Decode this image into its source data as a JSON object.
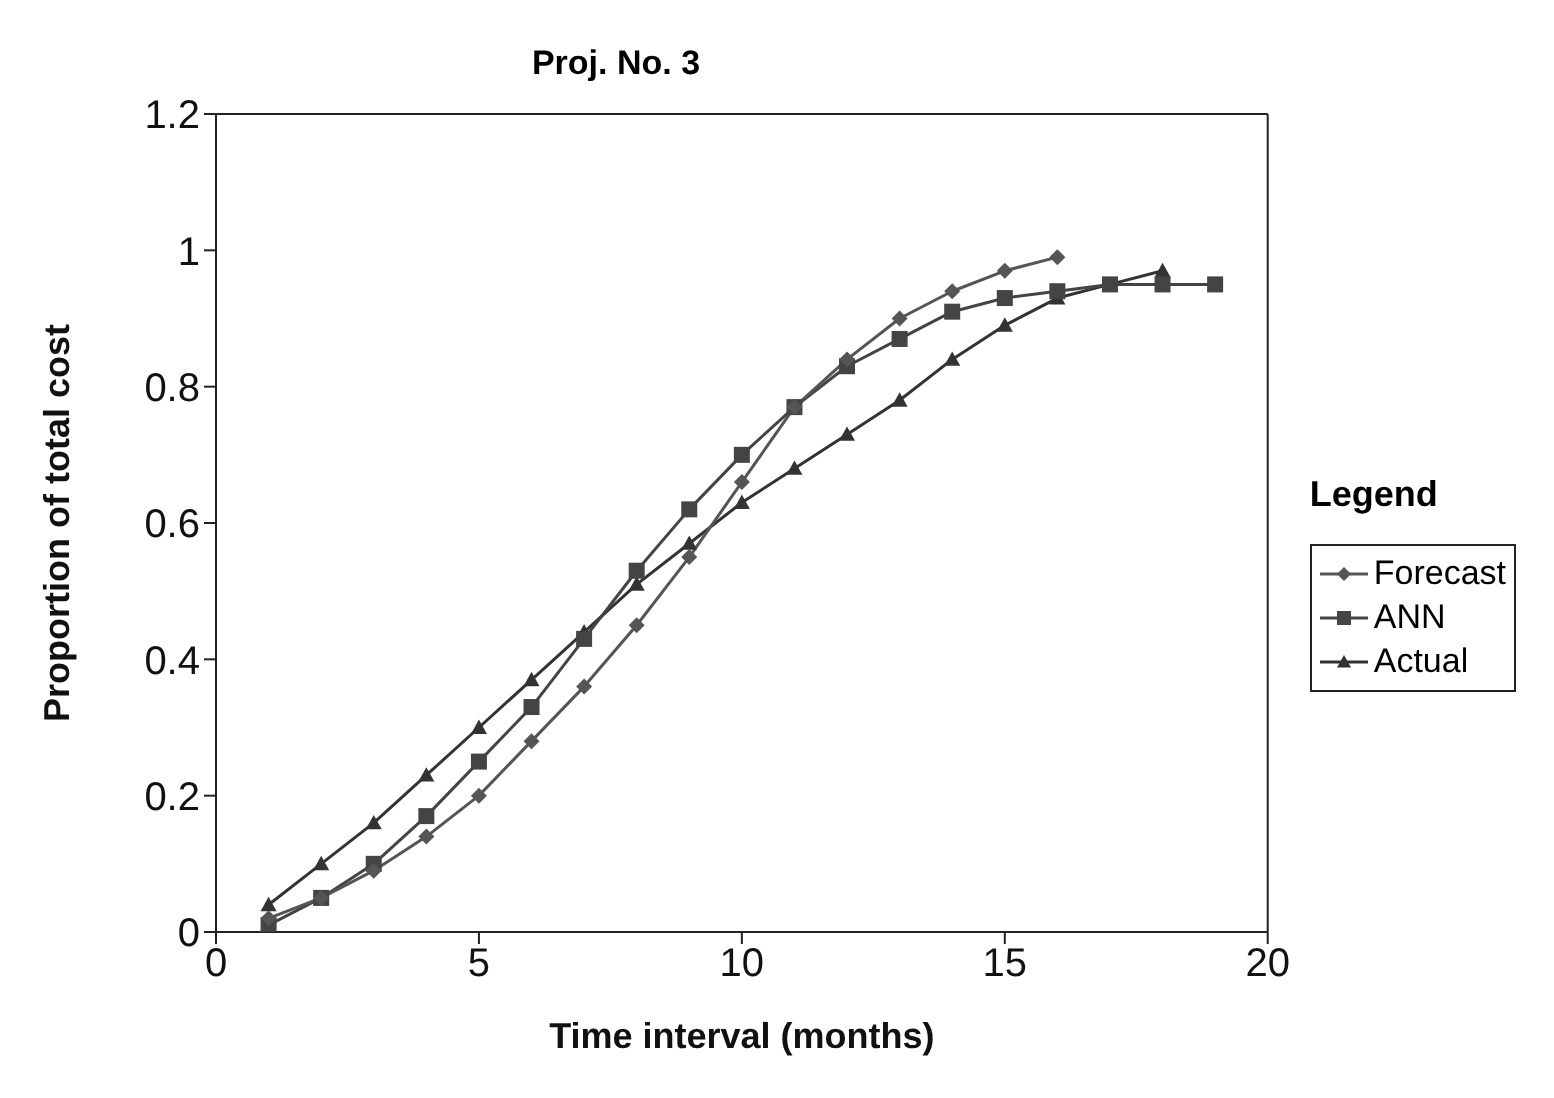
{
  "chart_data": {
    "type": "line",
    "title": "Proj. No. 3",
    "xlabel": "Time interval (months)",
    "ylabel": "Proportion of total cost",
    "legend_title": "Legend",
    "legend": "right",
    "grid": false,
    "xlim": [
      0,
      20
    ],
    "xticks": [
      0,
      5,
      10,
      15,
      20
    ],
    "ylim": [
      0,
      1.2
    ],
    "yticks": [
      0,
      0.2,
      0.4,
      0.6,
      0.8,
      1,
      1.2
    ],
    "series": [
      {
        "name": "Forecast",
        "color": "#555555",
        "marker": "diamond",
        "x": [
          1,
          2,
          3,
          4,
          5,
          6,
          7,
          8,
          9,
          10,
          11,
          12,
          13,
          14,
          15,
          16
        ],
        "values": [
          0.02,
          0.05,
          0.09,
          0.14,
          0.2,
          0.28,
          0.36,
          0.45,
          0.55,
          0.66,
          0.77,
          0.84,
          0.9,
          0.94,
          0.97,
          0.99
        ]
      },
      {
        "name": "ANN",
        "color": "#444444",
        "marker": "square",
        "x": [
          1,
          2,
          3,
          4,
          5,
          6,
          7,
          8,
          9,
          10,
          11,
          12,
          13,
          14,
          15,
          16,
          17,
          18,
          19
        ],
        "values": [
          0.01,
          0.05,
          0.1,
          0.17,
          0.25,
          0.33,
          0.43,
          0.53,
          0.62,
          0.7,
          0.77,
          0.83,
          0.87,
          0.91,
          0.93,
          0.94,
          0.95,
          0.95,
          0.95
        ]
      },
      {
        "name": "Actual",
        "color": "#333333",
        "marker": "triangle",
        "x": [
          1,
          2,
          3,
          4,
          5,
          6,
          7,
          8,
          9,
          10,
          11,
          12,
          13,
          14,
          15,
          16,
          17,
          18
        ],
        "values": [
          0.04,
          0.1,
          0.16,
          0.23,
          0.3,
          0.37,
          0.44,
          0.51,
          0.57,
          0.63,
          0.68,
          0.73,
          0.78,
          0.84,
          0.89,
          0.93,
          0.95,
          0.97
        ]
      }
    ]
  }
}
